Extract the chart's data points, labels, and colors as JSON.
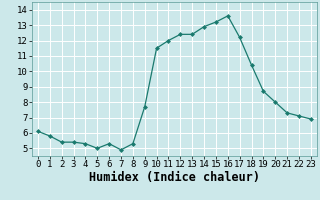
{
  "x": [
    0,
    1,
    2,
    3,
    4,
    5,
    6,
    7,
    8,
    9,
    10,
    11,
    12,
    13,
    14,
    15,
    16,
    17,
    18,
    19,
    20,
    21,
    22,
    23
  ],
  "y": [
    6.1,
    5.8,
    5.4,
    5.4,
    5.3,
    5.0,
    5.3,
    4.9,
    5.3,
    7.7,
    11.5,
    12.0,
    12.4,
    12.4,
    12.9,
    13.2,
    13.6,
    12.2,
    10.4,
    8.7,
    8.0,
    7.3,
    7.1,
    6.9
  ],
  "line_color": "#1a7a6e",
  "marker": "D",
  "marker_size": 2.0,
  "bg_color": "#cce8ea",
  "grid_color": "#b0d8dc",
  "xlabel": "Humidex (Indice chaleur)",
  "ylim": [
    4.5,
    14.5
  ],
  "xlim": [
    -0.5,
    23.5
  ],
  "yticks": [
    5,
    6,
    7,
    8,
    9,
    10,
    11,
    12,
    13,
    14
  ],
  "xticks": [
    0,
    1,
    2,
    3,
    4,
    5,
    6,
    7,
    8,
    9,
    10,
    11,
    12,
    13,
    14,
    15,
    16,
    17,
    18,
    19,
    20,
    21,
    22,
    23
  ],
  "tick_labelsize": 6.5,
  "xlabel_fontsize": 8.5
}
